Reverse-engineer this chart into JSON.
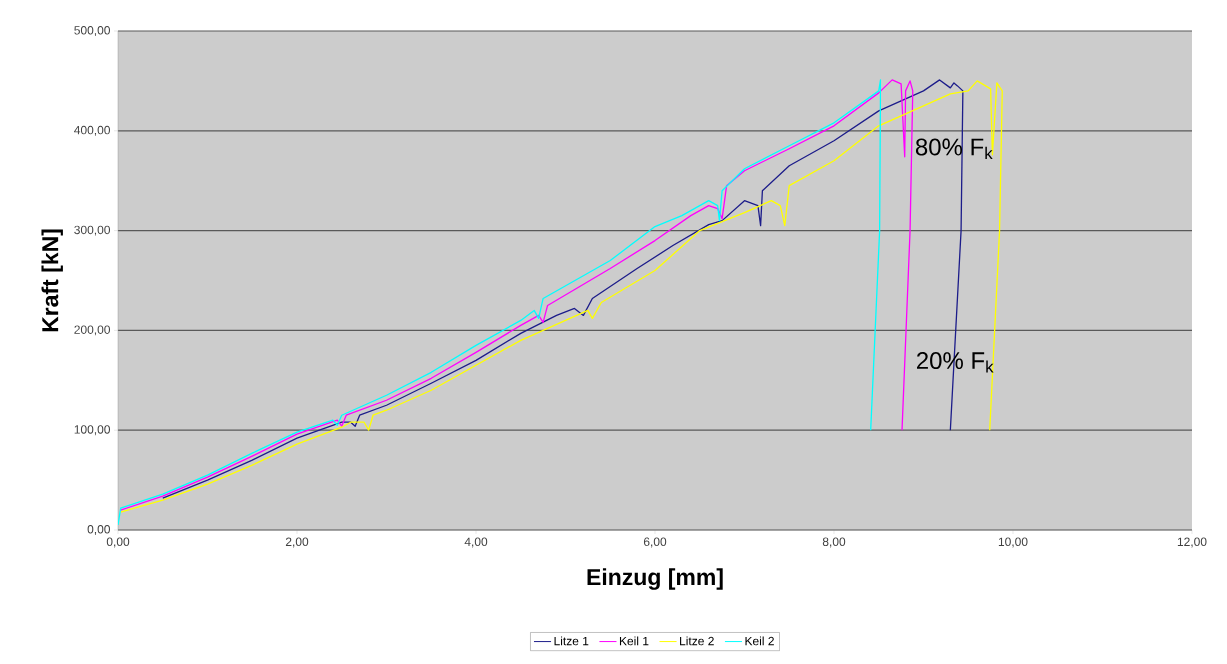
{
  "chart_data": {
    "type": "line",
    "xlabel": "Einzug [mm]",
    "ylabel": "Kraft [kN]",
    "xlim": [
      0,
      12
    ],
    "ylim": [
      0,
      500
    ],
    "xticks": [
      {
        "value": 0,
        "label": "0,00"
      },
      {
        "value": 2,
        "label": "2,00"
      },
      {
        "value": 4,
        "label": "4,00"
      },
      {
        "value": 6,
        "label": "6,00"
      },
      {
        "value": 8,
        "label": "8,00"
      },
      {
        "value": 10,
        "label": "10,00"
      },
      {
        "value": 12,
        "label": "12,00"
      }
    ],
    "yticks": [
      {
        "value": 0,
        "label": "0,00"
      },
      {
        "value": 100,
        "label": "100,00"
      },
      {
        "value": 200,
        "label": "200,00"
      },
      {
        "value": 300,
        "label": "300,00"
      },
      {
        "value": 400,
        "label": "400,00"
      },
      {
        "value": 500,
        "label": "500,00"
      }
    ],
    "grid": "y",
    "legend": "bottom",
    "marker": "none",
    "line_style": "solid",
    "annotations": [
      {
        "text": "80% F$_{k}$",
        "x": 8.79,
        "y": 382
      },
      {
        "text": "20% F$_{k}$",
        "x": 8.8,
        "y": 168
      }
    ],
    "series": [
      {
        "name": "Litze 1",
        "color": "#1c1c8a",
        "x": [
          0.5,
          1,
          1.5,
          2,
          2.5,
          2.6,
          2.65,
          2.7,
          3,
          3.5,
          4,
          4.5,
          4.9,
          5.1,
          5.2,
          5.3,
          5.8,
          6.2,
          6.6,
          6.75,
          7,
          7.15,
          7.18,
          7.2,
          7.5,
          8,
          8.5,
          9,
          9.18,
          9.3,
          9.34,
          9.38,
          9.44,
          9.42,
          9.3
        ],
        "values": [
          32,
          50,
          70,
          92,
          108,
          108,
          104,
          115,
          125,
          147,
          170,
          197,
          215,
          222,
          215,
          232,
          262,
          285,
          306,
          310,
          330,
          325,
          305,
          340,
          365,
          390,
          420,
          440,
          451,
          443,
          448,
          445,
          440,
          300,
          100
        ]
      },
      {
        "name": "Keil 1",
        "color": "#ff00ff",
        "x": [
          0.03,
          0.5,
          1,
          1.5,
          2,
          2.45,
          2.5,
          2.55,
          3,
          3.5,
          4,
          4.5,
          4.7,
          4.75,
          4.8,
          5.5,
          6,
          6.4,
          6.6,
          6.7,
          6.75,
          6.8,
          7,
          7.5,
          8,
          8.5,
          8.65,
          8.75,
          8.79,
          8.8,
          8.85,
          8.88,
          8.85,
          8.76
        ],
        "values": [
          20,
          34,
          53,
          74,
          96,
          110,
          104,
          115,
          130,
          152,
          178,
          205,
          215,
          208,
          225,
          262,
          290,
          315,
          325,
          322,
          312,
          345,
          360,
          382,
          405,
          438,
          451,
          447,
          374,
          440,
          450,
          440,
          300,
          100
        ]
      },
      {
        "name": "Litze 2",
        "color": "#ffff00",
        "x": [
          0.03,
          0.5,
          1,
          1.5,
          2,
          2.5,
          2.6,
          2.75,
          2.8,
          2.85,
          3,
          3.5,
          4,
          4.5,
          5,
          5.25,
          5.3,
          5.4,
          6,
          6.5,
          7,
          7.3,
          7.4,
          7.45,
          7.5,
          8,
          8.5,
          9,
          9.3,
          9.5,
          9.6,
          9.75,
          9.77,
          9.82,
          9.88,
          9.85,
          9.74
        ],
        "values": [
          18,
          30,
          46,
          65,
          86,
          103,
          108,
          108,
          100,
          115,
          120,
          140,
          165,
          190,
          210,
          220,
          212,
          228,
          260,
          300,
          318,
          330,
          325,
          305,
          345,
          370,
          405,
          425,
          437,
          440,
          450,
          442,
          376,
          448,
          440,
          300,
          100
        ]
      },
      {
        "name": "Keil 2",
        "color": "#00ffff",
        "x": [
          0,
          0.03,
          0.5,
          1,
          1.5,
          2,
          2.4,
          2.45,
          2.5,
          3,
          3.5,
          4,
          4.5,
          4.65,
          4.7,
          4.75,
          5.5,
          6,
          6.3,
          6.6,
          6.7,
          6.72,
          6.75,
          7,
          7.5,
          8,
          8.5,
          8.52,
          8.51,
          8.41
        ],
        "values": [
          5,
          22,
          36,
          55,
          77,
          98,
          110,
          105,
          115,
          135,
          158,
          185,
          210,
          220,
          212,
          232,
          270,
          304,
          315,
          330,
          325,
          310,
          340,
          362,
          385,
          408,
          440,
          451,
          300,
          100
        ]
      }
    ]
  }
}
